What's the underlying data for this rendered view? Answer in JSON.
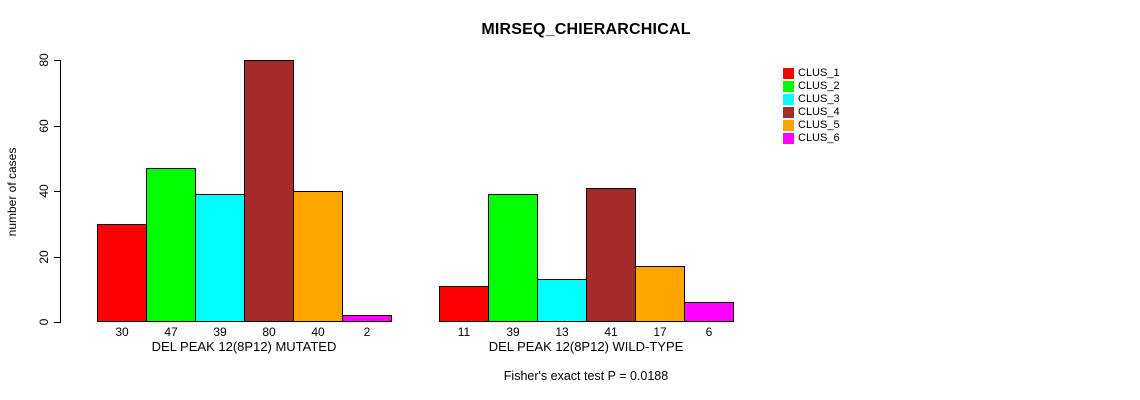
{
  "chart_data": {
    "type": "bar",
    "title": "MIRSEQ_CHIERARCHICAL",
    "ylabel": "number of cases",
    "xlabel": "",
    "ylim": [
      0,
      80
    ],
    "yticks": [
      0,
      20,
      40,
      60,
      80
    ],
    "grid": false,
    "legend_position": "top-right",
    "categories": [
      "DEL PEAK 12(8P12) MUTATED",
      "DEL PEAK 12(8P12) WILD-TYPE"
    ],
    "series": [
      {
        "name": "CLUS_1",
        "color": "#FF0000",
        "values": [
          30,
          11
        ]
      },
      {
        "name": "CLUS_2",
        "color": "#00FF00",
        "values": [
          47,
          39
        ]
      },
      {
        "name": "CLUS_3",
        "color": "#00FFFF",
        "values": [
          39,
          13
        ]
      },
      {
        "name": "CLUS_4",
        "color": "#A52A2A",
        "values": [
          80,
          41
        ]
      },
      {
        "name": "CLUS_5",
        "color": "#FFA500",
        "values": [
          40,
          17
        ]
      },
      {
        "name": "CLUS_6",
        "color": "#FF00FF",
        "values": [
          2,
          6
        ]
      }
    ],
    "bar_value_labels_shown": true,
    "annotation": "Fisher's exact test P = 0.0188",
    "axis_color": "#000000",
    "background_color": "#FFFFFF"
  }
}
